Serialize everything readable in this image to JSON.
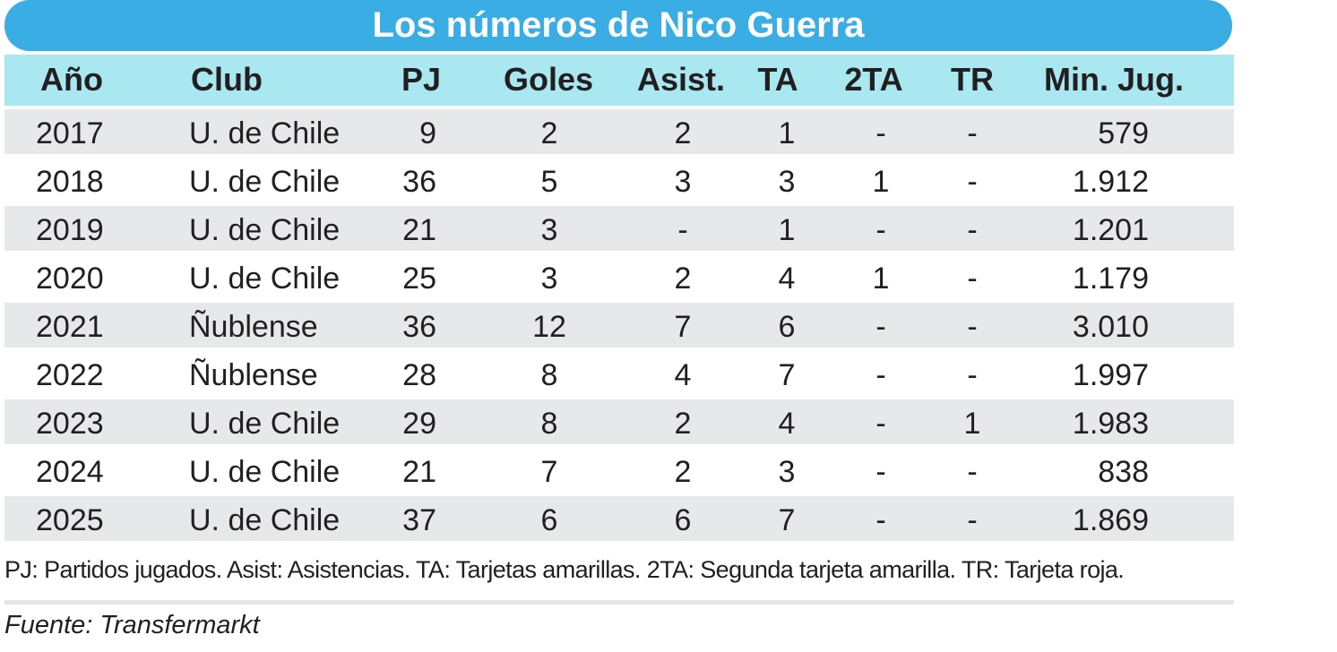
{
  "title": "Los números de Nico Guerra",
  "table": {
    "header": [
      "Año",
      "Club",
      "PJ",
      "Goles",
      "Asist.",
      "TA",
      "2TA",
      "TR",
      "Min. Jug."
    ],
    "rows": [
      [
        "2017",
        "U. de Chile",
        "9",
        "2",
        "2",
        "1",
        "-",
        "-",
        "579"
      ],
      [
        "2018",
        "U. de Chile",
        "36",
        "5",
        "3",
        "3",
        "1",
        "-",
        "1.912"
      ],
      [
        "2019",
        "U. de Chile",
        "21",
        "3",
        "-",
        "1",
        "-",
        "-",
        "1.201"
      ],
      [
        "2020",
        "U. de Chile",
        "25",
        "3",
        "2",
        "4",
        "1",
        "-",
        "1.179"
      ],
      [
        "2021",
        "Ñublense",
        "36",
        "12",
        "7",
        "6",
        "-",
        "-",
        "3.010"
      ],
      [
        "2022",
        "Ñublense",
        "28",
        "8",
        "4",
        "7",
        "-",
        "-",
        "1.997"
      ],
      [
        "2023",
        "U. de Chile",
        "29",
        "8",
        "2",
        "4",
        "-",
        "1",
        "1.983"
      ],
      [
        "2024",
        "U. de Chile",
        "21",
        "7",
        "2",
        "3",
        "-",
        "-",
        "838"
      ],
      [
        "2025",
        "U. de Chile",
        "37",
        "6",
        "6",
        "7",
        "-",
        "-",
        "1.869"
      ]
    ]
  },
  "footnote": "PJ: Partidos jugados. Asist: Asistencias. TA: Tarjetas amarillas. 2TA: Segunda tarjeta amarilla. TR: Tarjeta roja.",
  "source": "Fuente: Transfermarkt"
}
